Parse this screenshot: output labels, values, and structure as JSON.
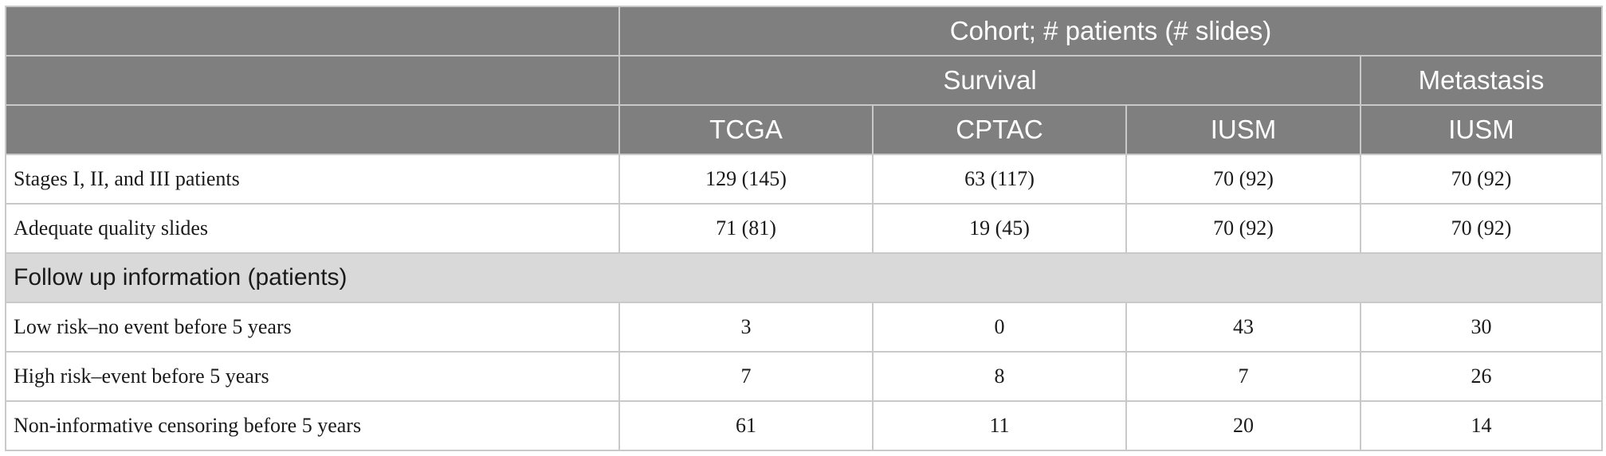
{
  "header": {
    "row1": {
      "cohort_label": "Cohort; # patients (# slides)"
    },
    "row2": {
      "survival_label": "Survival",
      "metastasis_label": "Metastasis"
    },
    "row3": {
      "columns": [
        "TCGA",
        "CPTAC",
        "IUSM",
        "IUSM"
      ]
    }
  },
  "rows": [
    {
      "label": "Stages I, II, and III patients",
      "values": [
        "129 (145)",
        "63 (117)",
        "70 (92)",
        "70 (92)"
      ]
    },
    {
      "label": "Adequate quality slides",
      "values": [
        "71 (81)",
        "19 (45)",
        "70 (92)",
        "70 (92)"
      ]
    }
  ],
  "section": {
    "label": "Follow up information (patients)"
  },
  "followup_rows": [
    {
      "label": "Low risk–no event before 5 years",
      "values": [
        "3",
        "0",
        "43",
        "30"
      ]
    },
    {
      "label": "High risk–event before 5 years",
      "values": [
        "7",
        "8",
        "7",
        "26"
      ]
    },
    {
      "label": "Non-informative censoring before 5 years",
      "values": [
        "61",
        "11",
        "20",
        "14"
      ]
    }
  ]
}
